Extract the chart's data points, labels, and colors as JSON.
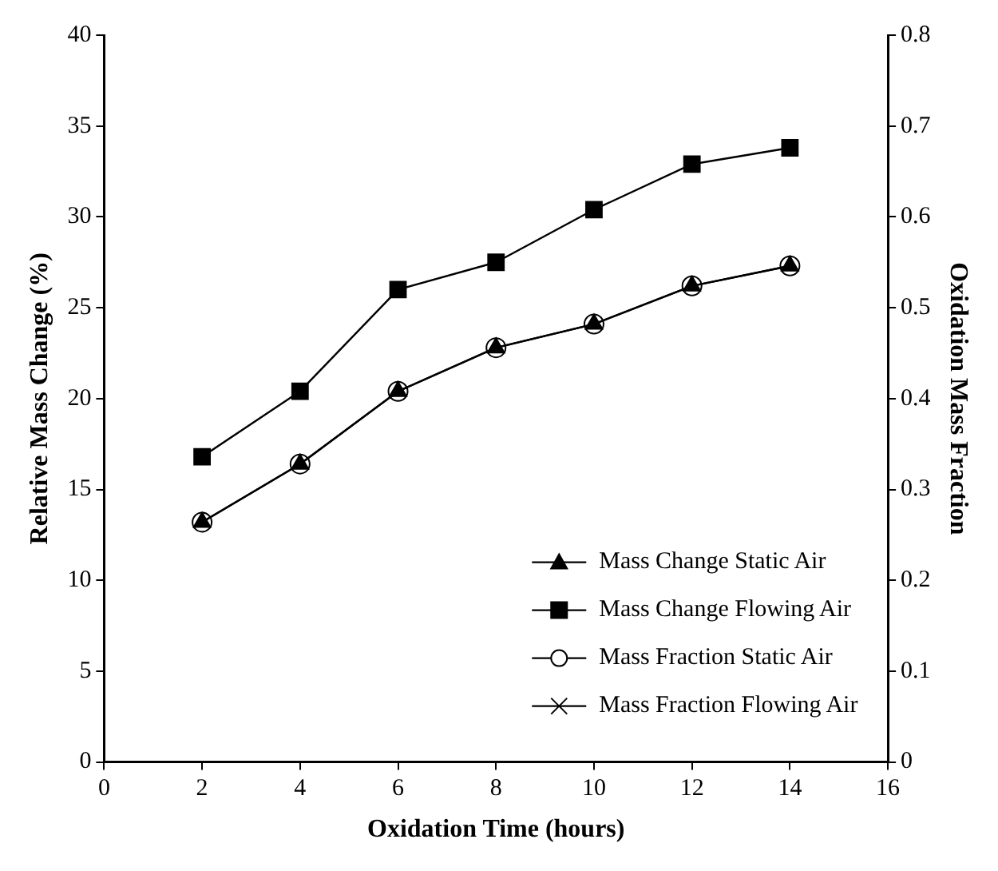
{
  "chart_data": {
    "type": "line",
    "xlabel": "Oxidation Time (hours)",
    "ylabel": "Relative Mass Change (%)",
    "y2label": "Oxidation Mass Fraction",
    "x": [
      2,
      4,
      6,
      8,
      10,
      12,
      14
    ],
    "xlim": [
      0,
      16
    ],
    "xticks": [
      0,
      2,
      4,
      6,
      8,
      10,
      12,
      14,
      16
    ],
    "ylim": [
      0,
      40
    ],
    "yticks": [
      0,
      5,
      10,
      15,
      20,
      25,
      30,
      35,
      40
    ],
    "y2lim": [
      0,
      0.8
    ],
    "y2ticks": [
      0,
      0.1,
      0.2,
      0.3,
      0.4,
      0.5,
      0.6,
      0.7,
      0.8
    ],
    "grid": false,
    "legend": "bottom right",
    "line_style": "solid",
    "series": [
      {
        "name": "Mass Change Static Air",
        "color": "#000000",
        "marker": "triangle",
        "values": [
          13.2,
          16.4,
          20.4,
          22.8,
          24.1,
          26.2,
          27.3
        ]
      },
      {
        "name": "Mass Change Flowing Air",
        "color": "#000000",
        "marker": "square",
        "values": [
          16.8,
          20.4,
          26.0,
          27.5,
          30.4,
          32.9,
          33.8
        ]
      },
      {
        "name": "Mass Fraction Static Air",
        "color": "#000000",
        "marker": "circle",
        "axis": "y2",
        "values": [
          0.264,
          0.328,
          0.408,
          0.456,
          0.482,
          0.524,
          0.546
        ]
      },
      {
        "name": "Mass Fraction Flowing Air",
        "color": "#000000",
        "marker": "cross",
        "axis": "y2",
        "values": [
          null,
          null,
          null,
          null,
          null,
          null,
          null
        ]
      }
    ]
  }
}
